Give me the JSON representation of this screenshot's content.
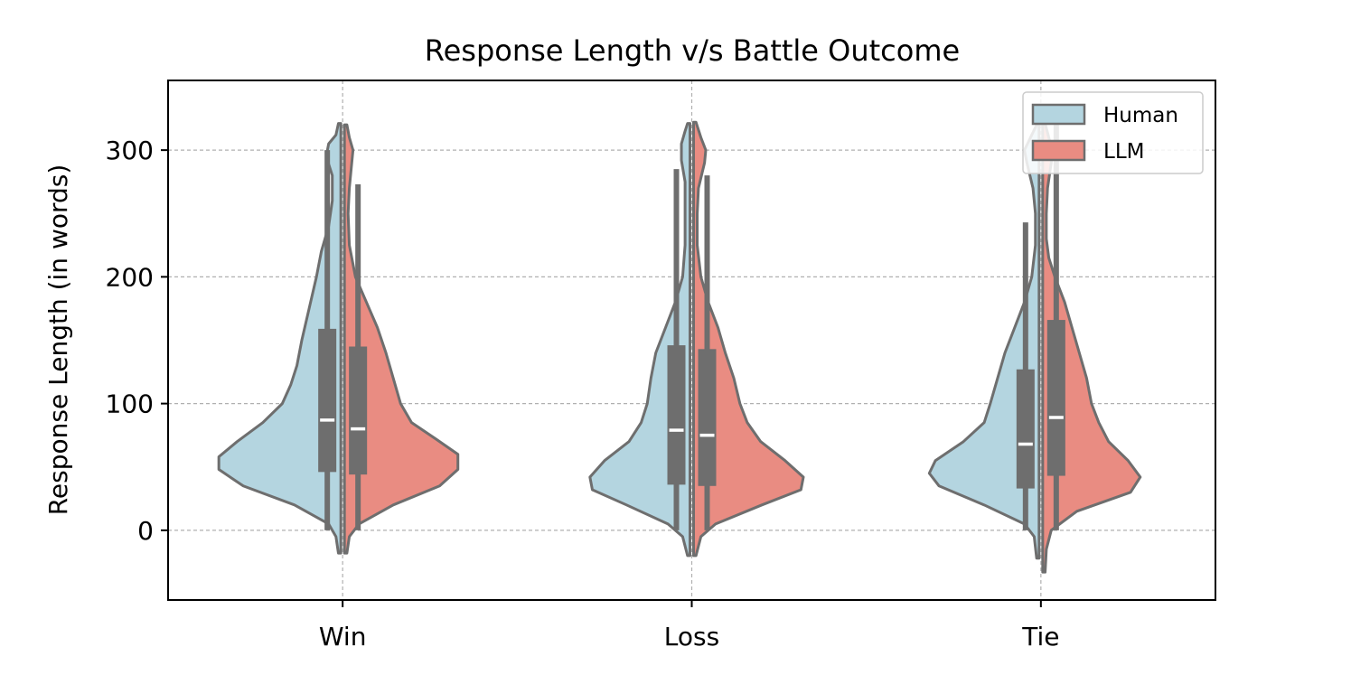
{
  "chart_data": {
    "type": "violin",
    "title": "Response Length v/s Battle Outcome",
    "xlabel": "",
    "ylabel": "Response Length (in words)",
    "categories": [
      "Win",
      "Loss",
      "Tie"
    ],
    "ylim": [
      -55,
      355
    ],
    "yticks": [
      0,
      100,
      200,
      300
    ],
    "grid": true,
    "legend": {
      "placement": "top-right"
    },
    "split": true,
    "series": [
      {
        "name": "Human",
        "color": "#b4d5e0",
        "groups": [
          {
            "category": "Win",
            "q1": 46,
            "median": 87,
            "q3": 159,
            "whisker_low": 0,
            "whisker_high": 300,
            "min": -18,
            "max": 321,
            "profile": [
              [
                -18,
                0.02
              ],
              [
                -5,
                0.04
              ],
              [
                5,
                0.1
              ],
              [
                20,
                0.38
              ],
              [
                35,
                0.8
              ],
              [
                48,
                1.0
              ],
              [
                58,
                1.0
              ],
              [
                70,
                0.85
              ],
              [
                85,
                0.64
              ],
              [
                100,
                0.48
              ],
              [
                115,
                0.41
              ],
              [
                130,
                0.36
              ],
              [
                150,
                0.32
              ],
              [
                175,
                0.26
              ],
              [
                200,
                0.2
              ],
              [
                220,
                0.16
              ],
              [
                240,
                0.1
              ],
              [
                260,
                0.07
              ],
              [
                280,
                0.07
              ],
              [
                295,
                0.12
              ],
              [
                305,
                0.1
              ],
              [
                312,
                0.04
              ],
              [
                321,
                0.02
              ]
            ]
          },
          {
            "category": "Loss",
            "q1": 36,
            "median": 79,
            "q3": 146,
            "whisker_low": 0,
            "whisker_high": 285,
            "min": -20,
            "max": 321,
            "profile": [
              [
                -20,
                0.02
              ],
              [
                -5,
                0.06
              ],
              [
                5,
                0.18
              ],
              [
                20,
                0.52
              ],
              [
                32,
                0.8
              ],
              [
                42,
                0.82
              ],
              [
                55,
                0.7
              ],
              [
                70,
                0.5
              ],
              [
                85,
                0.4
              ],
              [
                100,
                0.35
              ],
              [
                120,
                0.32
              ],
              [
                140,
                0.28
              ],
              [
                160,
                0.2
              ],
              [
                180,
                0.12
              ],
              [
                200,
                0.06
              ],
              [
                225,
                0.04
              ],
              [
                250,
                0.04
              ],
              [
                275,
                0.04
              ],
              [
                292,
                0.07
              ],
              [
                305,
                0.07
              ],
              [
                315,
                0.04
              ],
              [
                321,
                0.02
              ]
            ]
          },
          {
            "category": "Tie",
            "q1": 33,
            "median": 68,
            "q3": 127,
            "whisker_low": 0,
            "whisker_high": 243,
            "min": -22,
            "max": 320,
            "profile": [
              [
                -22,
                0.02
              ],
              [
                -5,
                0.04
              ],
              [
                5,
                0.12
              ],
              [
                20,
                0.45
              ],
              [
                35,
                0.82
              ],
              [
                45,
                0.9
              ],
              [
                55,
                0.85
              ],
              [
                70,
                0.62
              ],
              [
                85,
                0.45
              ],
              [
                100,
                0.4
              ],
              [
                120,
                0.34
              ],
              [
                140,
                0.28
              ],
              [
                160,
                0.2
              ],
              [
                180,
                0.12
              ],
              [
                200,
                0.06
              ],
              [
                225,
                0.03
              ],
              [
                250,
                0.03
              ],
              [
                270,
                0.05
              ],
              [
                290,
                0.1
              ],
              [
                300,
                0.12
              ],
              [
                310,
                0.07
              ],
              [
                320,
                0.02
              ]
            ]
          }
        ]
      },
      {
        "name": "LLM",
        "color": "#e98c82",
        "groups": [
          {
            "category": "Win",
            "q1": 44,
            "median": 80,
            "q3": 145,
            "whisker_low": 0,
            "whisker_high": 273,
            "min": -18,
            "max": 320,
            "profile": [
              [
                -18,
                0.02
              ],
              [
                -5,
                0.04
              ],
              [
                5,
                0.12
              ],
              [
                20,
                0.4
              ],
              [
                35,
                0.78
              ],
              [
                48,
                0.93
              ],
              [
                60,
                0.93
              ],
              [
                72,
                0.75
              ],
              [
                85,
                0.55
              ],
              [
                100,
                0.46
              ],
              [
                120,
                0.4
              ],
              [
                140,
                0.34
              ],
              [
                160,
                0.27
              ],
              [
                180,
                0.18
              ],
              [
                200,
                0.09
              ],
              [
                225,
                0.04
              ],
              [
                250,
                0.03
              ],
              [
                270,
                0.04
              ],
              [
                290,
                0.06
              ],
              [
                300,
                0.07
              ],
              [
                310,
                0.04
              ],
              [
                320,
                0.02
              ]
            ]
          },
          {
            "category": "Loss",
            "q1": 35,
            "median": 75,
            "q3": 143,
            "whisker_low": 0,
            "whisker_high": 280,
            "min": -20,
            "max": 322,
            "profile": [
              [
                -20,
                0.02
              ],
              [
                -5,
                0.06
              ],
              [
                5,
                0.18
              ],
              [
                20,
                0.56
              ],
              [
                32,
                0.88
              ],
              [
                42,
                0.9
              ],
              [
                55,
                0.75
              ],
              [
                70,
                0.55
              ],
              [
                85,
                0.44
              ],
              [
                100,
                0.38
              ],
              [
                120,
                0.33
              ],
              [
                140,
                0.26
              ],
              [
                160,
                0.2
              ],
              [
                180,
                0.12
              ],
              [
                200,
                0.06
              ],
              [
                225,
                0.03
              ],
              [
                250,
                0.03
              ],
              [
                270,
                0.04
              ],
              [
                290,
                0.09
              ],
              [
                300,
                0.1
              ],
              [
                310,
                0.06
              ],
              [
                322,
                0.02
              ]
            ]
          },
          {
            "category": "Tie",
            "q1": 43,
            "median": 89,
            "q3": 166,
            "whisker_low": 0,
            "whisker_high": 320,
            "min": -33,
            "max": 321,
            "profile": [
              [
                -33,
                0.02
              ],
              [
                -15,
                0.03
              ],
              [
                0,
                0.07
              ],
              [
                15,
                0.28
              ],
              [
                30,
                0.72
              ],
              [
                42,
                0.8
              ],
              [
                55,
                0.7
              ],
              [
                70,
                0.54
              ],
              [
                85,
                0.46
              ],
              [
                100,
                0.4
              ],
              [
                120,
                0.36
              ],
              [
                140,
                0.3
              ],
              [
                160,
                0.24
              ],
              [
                180,
                0.18
              ],
              [
                200,
                0.1
              ],
              [
                215,
                0.05
              ],
              [
                230,
                0.03
              ],
              [
                250,
                0.03
              ],
              [
                270,
                0.04
              ],
              [
                290,
                0.07
              ],
              [
                300,
                0.08
              ],
              [
                310,
                0.05
              ],
              [
                321,
                0.02
              ]
            ]
          }
        ]
      }
    ]
  }
}
